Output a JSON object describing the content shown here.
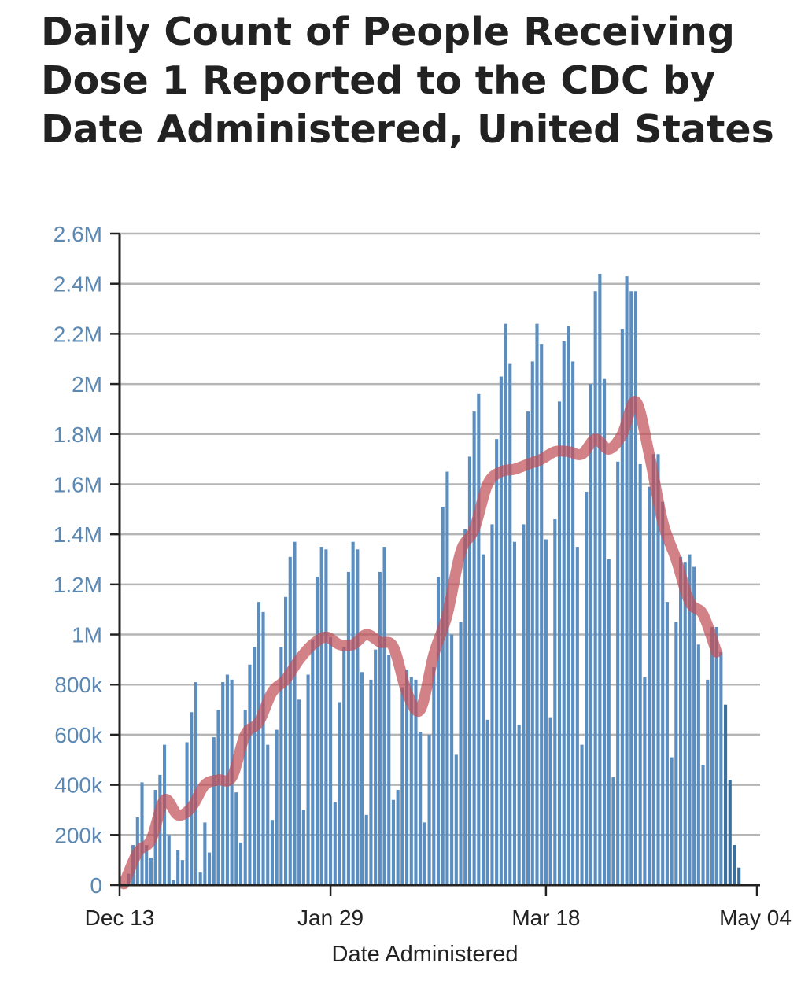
{
  "chart_data": {
    "type": "bar",
    "title_lines": [
      "Daily Count of People Receiving",
      "Dose 1 Reported to the CDC by",
      "Date Administered, United States"
    ],
    "xlabel": "Date Administered",
    "ylabel": "",
    "ylim": [
      0,
      2600000
    ],
    "y_ticks": [
      {
        "value": 0,
        "label": "0"
      },
      {
        "value": 200000,
        "label": "200k"
      },
      {
        "value": 400000,
        "label": "400k"
      },
      {
        "value": 600000,
        "label": "600k"
      },
      {
        "value": 800000,
        "label": "800k"
      },
      {
        "value": 1000000,
        "label": "1M"
      },
      {
        "value": 1200000,
        "label": "1.2M"
      },
      {
        "value": 1400000,
        "label": "1.4M"
      },
      {
        "value": 1600000,
        "label": "1.6M"
      },
      {
        "value": 1800000,
        "label": "1.8M"
      },
      {
        "value": 2000000,
        "label": "2M"
      },
      {
        "value": 2200000,
        "label": "2.2M"
      },
      {
        "value": 2400000,
        "label": "2.4M"
      },
      {
        "value": 2600000,
        "label": "2.6M"
      }
    ],
    "x_ticks": [
      {
        "date": "2020-12-13",
        "label": "Dec 13"
      },
      {
        "date": "2021-01-29",
        "label": "Jan 29"
      },
      {
        "date": "2021-03-18",
        "label": "Mar 18"
      },
      {
        "date": "2021-05-04",
        "label": "May 04"
      }
    ],
    "start_date": "2020-12-14",
    "grid": true,
    "colors": {
      "bars": "#5b8ec0",
      "bars_incomplete": "#3d6f9c",
      "average_line": "#c05058",
      "gridline": "#b5b5b5",
      "axis": "#222222",
      "ytick_text": "#5b89b4"
    },
    "incomplete_last_days": 4,
    "series": [
      {
        "type": "bar",
        "values": [
          3000,
          45000,
          160000,
          270000,
          410000,
          160000,
          110000,
          380000,
          440000,
          560000,
          200000,
          20000,
          140000,
          100000,
          570000,
          690000,
          810000,
          50000,
          250000,
          130000,
          590000,
          700000,
          810000,
          840000,
          820000,
          370000,
          170000,
          700000,
          880000,
          950000,
          1130000,
          1090000,
          560000,
          260000,
          620000,
          950000,
          1150000,
          1310000,
          1370000,
          740000,
          300000,
          840000,
          980000,
          1230000,
          1350000,
          1340000,
          990000,
          330000,
          730000,
          950000,
          1250000,
          1370000,
          1340000,
          850000,
          280000,
          820000,
          940000,
          1250000,
          1350000,
          920000,
          340000,
          380000,
          790000,
          860000,
          830000,
          820000,
          610000,
          250000,
          600000,
          870000,
          1230000,
          1510000,
          1650000,
          1000000,
          520000,
          1050000,
          1420000,
          1710000,
          1890000,
          1960000,
          1320000,
          660000,
          1440000,
          1780000,
          2030000,
          2240000,
          2080000,
          1370000,
          640000,
          1440000,
          1890000,
          2090000,
          2240000,
          2160000,
          1380000,
          670000,
          1460000,
          1930000,
          2170000,
          2230000,
          2090000,
          1350000,
          560000,
          1570000,
          2000000,
          2370000,
          2440000,
          2020000,
          1300000,
          430000,
          1690000,
          2220000,
          2430000,
          2370000,
          2370000,
          1680000,
          830000,
          1590000,
          1720000,
          1720000,
          1530000,
          1130000,
          510000,
          1050000,
          1310000,
          1290000,
          1320000,
          1270000,
          960000,
          480000,
          820000,
          1030000,
          1030000,
          930000,
          720000,
          420000,
          160000,
          70000
        ]
      },
      {
        "type": "line",
        "name": "7-day average",
        "points": [
          [
            "2020-12-14",
            5000
          ],
          [
            "2020-12-17",
            130000
          ],
          [
            "2020-12-20",
            180000
          ],
          [
            "2020-12-23",
            340000
          ],
          [
            "2020-12-26",
            280000
          ],
          [
            "2020-12-29",
            310000
          ],
          [
            "2021-01-01",
            400000
          ],
          [
            "2021-01-04",
            420000
          ],
          [
            "2021-01-07",
            430000
          ],
          [
            "2021-01-10",
            600000
          ],
          [
            "2021-01-13",
            650000
          ],
          [
            "2021-01-16",
            770000
          ],
          [
            "2021-01-19",
            820000
          ],
          [
            "2021-01-22",
            900000
          ],
          [
            "2021-01-25",
            960000
          ],
          [
            "2021-01-28",
            990000
          ],
          [
            "2021-01-31",
            960000
          ],
          [
            "2021-02-03",
            960000
          ],
          [
            "2021-02-06",
            1000000
          ],
          [
            "2021-02-09",
            970000
          ],
          [
            "2021-02-12",
            950000
          ],
          [
            "2021-02-15",
            770000
          ],
          [
            "2021-02-18",
            700000
          ],
          [
            "2021-02-21",
            920000
          ],
          [
            "2021-02-24",
            1080000
          ],
          [
            "2021-02-27",
            1330000
          ],
          [
            "2021-03-02",
            1420000
          ],
          [
            "2021-03-05",
            1600000
          ],
          [
            "2021-03-08",
            1650000
          ],
          [
            "2021-03-11",
            1660000
          ],
          [
            "2021-03-14",
            1680000
          ],
          [
            "2021-03-17",
            1700000
          ],
          [
            "2021-03-20",
            1730000
          ],
          [
            "2021-03-23",
            1730000
          ],
          [
            "2021-03-26",
            1720000
          ],
          [
            "2021-03-29",
            1780000
          ],
          [
            "2021-04-01",
            1740000
          ],
          [
            "2021-04-04",
            1800000
          ],
          [
            "2021-04-07",
            1930000
          ],
          [
            "2021-04-10",
            1720000
          ],
          [
            "2021-04-13",
            1450000
          ],
          [
            "2021-04-16",
            1300000
          ],
          [
            "2021-04-19",
            1130000
          ],
          [
            "2021-04-22",
            1080000
          ],
          [
            "2021-04-25",
            930000
          ]
        ]
      }
    ]
  }
}
